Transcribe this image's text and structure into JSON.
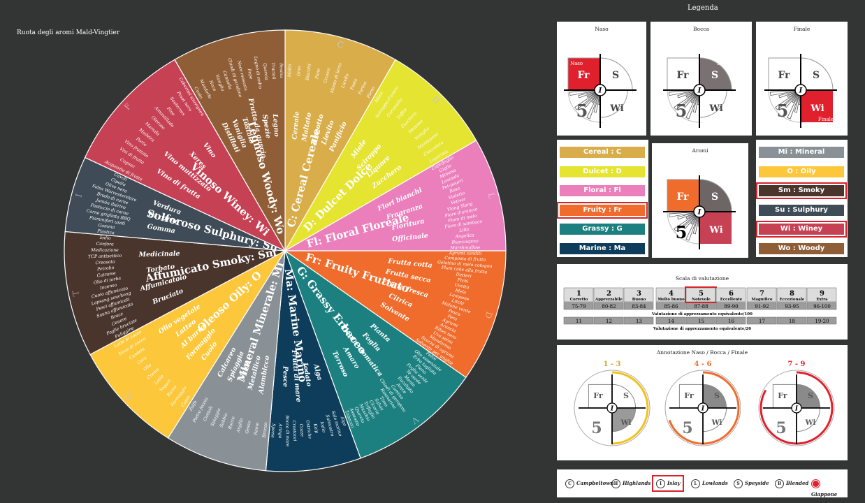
{
  "wheel_title": "Ruota degli aromi Mald-Vingtier",
  "legend_title": "Legenda",
  "sectors": [
    {
      "label": "C: Cereal Cereale",
      "letter": "C",
      "color": "#d9ad4a",
      "start": 0,
      "end": 30,
      "sub": [
        "Cereale",
        "Maltato",
        "Biscotto",
        "Lievito",
        "Panificio"
      ],
      "descr": [
        "Malto",
        "Orzo",
        "Biscotti",
        "Pane",
        "Crusca",
        "Mosto di birra",
        "Lievito",
        "Pasta",
        "Farina",
        "Fieno"
      ]
    },
    {
      "label": "D: Dulcet Dolce",
      "letter": "D",
      "color": "#e5e430",
      "start": 30,
      "end": 60,
      "sub": [
        "Miele",
        "Sciroppo",
        "Liquore",
        "Zucchero"
      ],
      "descr": [
        "Miele",
        "Sciroppo d'acero",
        "Caramello",
        "Toffee",
        "Zucchero",
        "Melassa",
        "Vaniglia",
        "Marzapane",
        "Cioccolato",
        "Liquirizia"
      ]
    },
    {
      "label": "Fl: Floral Floreale",
      "letter": "L",
      "color": "#eb7fbc",
      "start": 60,
      "end": 90,
      "sub": [
        "Fiori bianchi",
        "Fragranza",
        "Fioritura",
        "Officinale"
      ],
      "descr": [
        "Caprifoglio",
        "Giglio",
        "Mimosa",
        "Lavanda",
        "Pot-pourri",
        "Rosa",
        "Violetta",
        "Vetiver",
        "Ylang Ylang",
        "Fiore d'arancio",
        "Fiore di melo",
        "Fiore di sambuco",
        "Lillà",
        "Angelica",
        "Biancospino",
        "Marshmallow"
      ]
    },
    {
      "label": "Fr: Fruity Fruttato",
      "letter": "D",
      "color": "#ef6c2c",
      "start": 90,
      "end": 125,
      "sub": [
        "Frutta cotta",
        "Frutta secca",
        "Frutta fresca",
        "Citrica",
        "Solvente"
      ],
      "descr": [
        "Agrumi canditi",
        "Composta di frutta",
        "Gelatina di mela cotogna",
        "Plum cake alla frutta",
        "Datteri",
        "Fichi",
        "Uvetta",
        "Mela",
        "Lampone",
        "Litchi",
        "Melone verde",
        "Pesca",
        "Pera",
        "Agrumi",
        "Arancia",
        "Ribes nero",
        "Uva spina",
        "Mandarino",
        "Scorza di agrumi",
        "Solvente per unghie"
      ]
    },
    {
      "label": "G: Grassy Erbaceo",
      "letter": "V",
      "color": "#1c8080",
      "start": 125,
      "end": 160,
      "sub": [
        "Pianta",
        "Foglia",
        "Pianta aromatica",
        "Amaro",
        "Terroso"
      ],
      "descr": [
        "Felce",
        "Olio essenziale",
        "Erba tagliata",
        "Fieno",
        "Foglia verde",
        "Tè verde",
        "Menta",
        "Eucalipto",
        "Anice",
        "Cumino",
        "Chiodi di garofano",
        "Rosmarino",
        "Timo",
        "Salvia",
        "Cicoria",
        "Trifoglio",
        "Muschio",
        "Quercia",
        "Assenzio",
        "Tabacco"
      ]
    },
    {
      "label": "Ma: Marine Marino",
      "letter": "",
      "color": "#0d3d5a",
      "start": 160,
      "end": 185,
      "sub": [
        "Alga",
        "Iodato",
        "Frutti di mare",
        "Pesce"
      ],
      "descr": [
        "Alga",
        "Sale marino",
        "Salmastro",
        "Iodio",
        "Kelp",
        "Ostriche",
        "Cozze",
        "Crostacei",
        "Bocca di mare",
        "Aringa",
        "Spezie"
      ]
    },
    {
      "label": "Mineral Minerale: Mi",
      "letter": "",
      "color": "#8a9196",
      "start": 185,
      "end": 212,
      "sub": [
        "Alambicco",
        "Metallico",
        "Selce",
        "Spiaggia",
        "Calcareo"
      ],
      "descr": [
        "Bronzo",
        "Rame",
        "Gesso",
        "Argilla",
        "Rocce",
        "Sabbia",
        "Spiaggia",
        "Ciottoli",
        "Pietra focaia",
        "Zolfo"
      ]
    },
    {
      "label": "Oleoso Oily: O",
      "letter": "G",
      "color": "#fcc73a",
      "start": 212,
      "end": 242,
      "sub": [
        "Cuoio",
        "Formaggio",
        "Al burro",
        "Latteo",
        "Olio vegetale"
      ],
      "descr": [
        "Cuoio",
        "Formaggio",
        "Burro",
        "Yogurt",
        "Latte",
        "Crema",
        "Olio",
        "Cera",
        "Candela",
        "Noce di cocco",
        "Latte di cocco"
      ]
    },
    {
      "label": "Affumicato Smoky: Sm",
      "letter": "T",
      "color": "#4a352d",
      "start": 242,
      "end": 275,
      "sub": [
        "Bruciato",
        "Affumicatoio",
        "Torbato",
        "Medicinale"
      ],
      "descr": [
        "Fuliggine",
        "Foglie bruciate",
        "Cenere",
        "Brace",
        "Sauna affumicata",
        "Pesci affumicati",
        "Lapsang souchong",
        "Cuoio affumicato",
        "Incenso",
        "Olio di torba",
        "Catrame",
        "Petrolio",
        "Creosoto",
        "TCP antisettico",
        "Medicazione",
        "Canfora",
        "Iodio"
      ]
    },
    {
      "label": "Solforoso Sulphury: Su",
      "letter": "I",
      "color": "#3f4c57",
      "start": 275,
      "end": 295,
      "sub": [
        "Gomma",
        "Di carne",
        "Verdura"
      ],
      "descr": [
        "Plastica",
        "Gomma",
        "Fiammiferi usati",
        "Carne grigliata BBQ",
        "Pasticcio di carne",
        "Jamón ibérico",
        "Brodo di carne",
        "Salsa Worcestershire",
        "Olive nera",
        "Cipolla",
        "Cavoli"
      ]
    },
    {
      "label": "Vinoso Winey: Wi",
      "letter": "F",
      "color": "#c64154",
      "start": 295,
      "end": 330,
      "sub": [
        "Vino di frutta",
        "Vino muttizzato",
        "Xeres",
        "Vino"
      ],
      "descr": [
        "Acquavite di frutta",
        "Cognac",
        "Vini di frutta",
        "Vino fruttato",
        "Porto",
        "Madeira",
        "Marsala",
        "Oloroso",
        "Amontillado",
        "Fino",
        "Sauternes",
        "Pinot nero",
        "Cabernet sauvignon"
      ]
    },
    {
      "label": "Legnoso Woody: Wo",
      "letter": "",
      "color": "#8f5e36",
      "start": 330,
      "end": 360,
      "sub": [
        "Distillati",
        "Vaniglia",
        "Tostato",
        "Frutta da guscio",
        "Spezie",
        "Legno"
      ],
      "descr": [
        "Cuoio",
        "Mandorle",
        "Noce",
        "Vaniglia",
        "Cannella",
        "Chiodi di garofano",
        "Noce moscata",
        "Pepe",
        "Legno di cedro",
        "Quercia",
        "Trucioli",
        "Resina"
      ]
    }
  ],
  "naso_panel": {
    "title": "Naso",
    "tag": "Naso"
  },
  "bocca_panel": {
    "title": "Bocca",
    "tag": "Bocca"
  },
  "finale_panel": {
    "title": "Finale",
    "tag": "Finale"
  },
  "aromi_panel": {
    "title": "Aromi",
    "number": "5"
  },
  "icon_letters": {
    "fr": "Fr",
    "s": "S",
    "wi": "Wi",
    "i": "I",
    "five": "5"
  },
  "aromas_left": [
    {
      "label": "Cereal : C",
      "color": "#d9ad4a",
      "selected": false
    },
    {
      "label": "Dulcet : D",
      "color": "#e5e430",
      "selected": false
    },
    {
      "label": "Floral : Fl",
      "color": "#eb7fbc",
      "selected": false
    },
    {
      "label": "Fruity : Fr",
      "color": "#ef6c2c",
      "selected": true
    },
    {
      "label": "Grassy : G",
      "color": "#1c8080",
      "selected": false
    },
    {
      "label": "Marine : Ma",
      "color": "#0d3d5a",
      "selected": false
    }
  ],
  "aromas_right": [
    {
      "label": "Mi : Mineral",
      "color": "#8a9196",
      "selected": false
    },
    {
      "label": "O : Oily",
      "color": "#fcc73a",
      "selected": false
    },
    {
      "label": "Sm : Smoky",
      "color": "#4a352d",
      "selected": true
    },
    {
      "label": "Su : Sulphury",
      "color": "#3f4c57",
      "selected": false
    },
    {
      "label": "Wi : Winey",
      "color": "#c64154",
      "selected": true
    },
    {
      "label": "Wo : Woody",
      "color": "#8f5e36",
      "selected": false
    }
  ],
  "scale": {
    "title": "Scala di valutazione",
    "columns": [
      {
        "n": "1",
        "name": "Corretto",
        "range": "75-79",
        "twenty": "11"
      },
      {
        "n": "2",
        "name": "Apprezzabile",
        "range": "80-82",
        "twenty": "12"
      },
      {
        "n": "3",
        "name": "Buono",
        "range": "83-84",
        "twenty": "13"
      },
      {
        "n": "4",
        "name": "Molto buono",
        "range": "85-86",
        "twenty": "14"
      },
      {
        "n": "5",
        "name": "Notevole",
        "range": "87-88",
        "twenty": "15"
      },
      {
        "n": "6",
        "name": "Eccellente",
        "range": "89-90",
        "twenty": "16"
      },
      {
        "n": "7",
        "name": "Magnifico",
        "range": "91-92",
        "twenty": "17"
      },
      {
        "n": "8",
        "name": "Eccezionale",
        "range": "93-95",
        "twenty": "18"
      },
      {
        "n": "9",
        "name": "Extra",
        "range": "96-100",
        "twenty": "19-20"
      }
    ],
    "selected_index": 4,
    "note100": "Valutazione di apprezzamento equivalente/100",
    "note20": "Valutazione di apprezzamento equivalente/20"
  },
  "annotation": {
    "title": "Annotazione Naso / Bocca / Finale",
    "items": [
      {
        "range": "1 - 3",
        "color": "#f2c21a",
        "range_color": "#d0a820"
      },
      {
        "range": "4 - 6",
        "color": "#ef6c2c",
        "range_color": "#ef6c2c"
      },
      {
        "range": "7 - 9",
        "color": "#e0212d",
        "range_color": "#e0212d"
      }
    ]
  },
  "regions": [
    {
      "code": "C",
      "label": "Campbeltown",
      "selected": false
    },
    {
      "code": "H",
      "label": "Highlands",
      "selected": false
    },
    {
      "code": "I",
      "label": "Islay",
      "selected": true
    },
    {
      "code": "L",
      "label": "Lowlands",
      "selected": false
    },
    {
      "code": "S",
      "label": "Speyside",
      "selected": false
    },
    {
      "code": "B",
      "label": "Blended",
      "selected": false
    },
    {
      "code": "",
      "label": "Giappone",
      "selected": false
    }
  ]
}
